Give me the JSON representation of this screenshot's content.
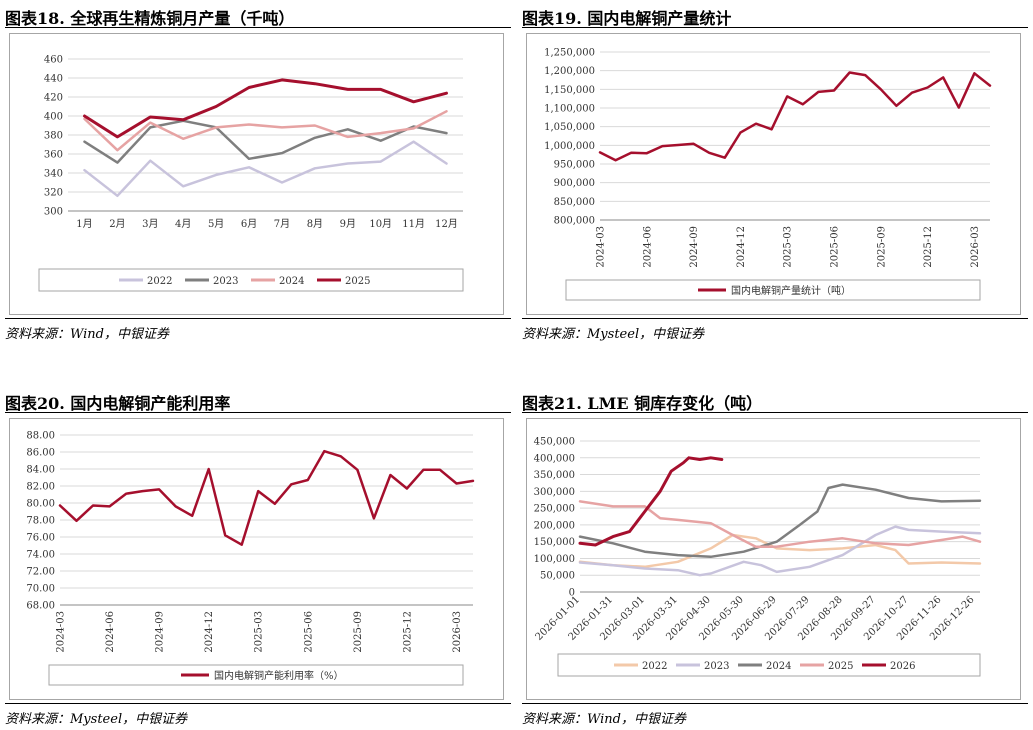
{
  "charts": [
    {
      "title": "图表18.   全球再生精炼铜月产量（千吨）",
      "source": "资料来源：Wind，中银证券",
      "chart_data": {
        "type": "line",
        "categories": [
          "1月",
          "2月",
          "3月",
          "4月",
          "5月",
          "6月",
          "7月",
          "8月",
          "9月",
          "10月",
          "11月",
          "12月"
        ],
        "ylim": [
          300,
          460
        ],
        "yticks": [
          300,
          320,
          340,
          360,
          380,
          400,
          420,
          440,
          460
        ],
        "grid": true,
        "legend": "bottom",
        "series": [
          {
            "name": "2022",
            "color": "#c8c3dc",
            "values": [
              343,
              316,
              353,
              326,
              338,
              346,
              330,
              345,
              350,
              352,
              373,
              350
            ]
          },
          {
            "name": "2023",
            "color": "#7f7f7f",
            "values": [
              373,
              351,
              388,
              395,
              388,
              355,
              361,
              377,
              386,
              374,
              389,
              382
            ]
          },
          {
            "name": "2024",
            "color": "#e6a3a3",
            "values": [
              397,
              364,
              393,
              376,
              388,
              391,
              388,
              390,
              378,
              382,
              387,
              405
            ]
          },
          {
            "name": "2025",
            "color": "#a50f2d",
            "values": [
              400,
              378,
              399,
              396,
              410,
              430,
              438,
              434,
              428,
              428,
              415,
              424
            ]
          }
        ]
      }
    },
    {
      "title": "图表19.   国内电解铜产量统计",
      "source": "资料来源：Mysteel，中银证券",
      "chart_data": {
        "type": "line",
        "x": [
          "2024-03",
          "2024-04",
          "2024-05",
          "2024-06",
          "2024-07",
          "2024-08",
          "2024-09",
          "2024-10",
          "2024-11",
          "2024-12",
          "2025-01",
          "2025-02",
          "2025-03",
          "2025-04",
          "2025-05",
          "2025-06",
          "2025-07",
          "2025-08",
          "2025-09",
          "2025-10",
          "2025-11",
          "2025-12",
          "2026-01",
          "2026-02",
          "2026-03",
          "2026-04"
        ],
        "xticks": [
          "2024-03",
          "2024-06",
          "2024-09",
          "2024-12",
          "2025-03",
          "2025-06",
          "2025-09",
          "2025-12",
          "2026-03"
        ],
        "ylim": [
          800000,
          1250000
        ],
        "yticks": [
          800000,
          850000,
          900000,
          950000,
          1000000,
          1050000,
          1100000,
          1150000,
          1200000,
          1250000
        ],
        "ytick_labels": [
          "800,000",
          "850,000",
          "900,000",
          "950,000",
          "1,000,000",
          "1,050,000",
          "1,100,000",
          "1,150,000",
          "1,200,000",
          "1,250,000"
        ],
        "grid": true,
        "legend": "bottom",
        "series": [
          {
            "name": "国内电解铜产量统计（吨）",
            "color": "#a50f2d",
            "values": [
              981000,
              960000,
              980000,
              979000,
              998000,
              1001000,
              1004000,
              980000,
              967000,
              1034000,
              1058000,
              1043000,
              1131000,
              1110000,
              1143000,
              1147000,
              1195000,
              1188000,
              1150000,
              1106000,
              1141000,
              1155000,
              1182000,
              1101000,
              1193000,
              1160000
            ]
          }
        ]
      }
    },
    {
      "title": "图表20.   国内电解铜产能利用率",
      "source": "资料来源：Mysteel，中银证券",
      "chart_data": {
        "type": "line",
        "x": [
          "2024-03",
          "2024-04",
          "2024-05",
          "2024-06",
          "2024-07",
          "2024-08",
          "2024-09",
          "2024-10",
          "2024-11",
          "2024-12",
          "2025-01",
          "2025-02",
          "2025-03",
          "2025-04",
          "2025-05",
          "2025-06",
          "2025-07",
          "2025-08",
          "2025-09",
          "2025-10",
          "2025-11",
          "2025-12",
          "2026-01",
          "2026-02",
          "2026-03",
          "2026-04"
        ],
        "xticks": [
          "2024-03",
          "2024-06",
          "2024-09",
          "2024-12",
          "2025-03",
          "2025-06",
          "2025-09",
          "2025-12",
          "2026-03"
        ],
        "ylim": [
          68,
          88
        ],
        "yticks": [
          68,
          70,
          72,
          74,
          76,
          78,
          80,
          82,
          84,
          86,
          88
        ],
        "ytick_labels": [
          "68.00",
          "70.00",
          "72.00",
          "74.00",
          "76.00",
          "78.00",
          "80.00",
          "82.00",
          "84.00",
          "86.00",
          "88.00"
        ],
        "grid": true,
        "legend": "bottom",
        "series": [
          {
            "name": "国内电解铜产能利用率（%）",
            "color": "#a50f2d",
            "values": [
              79.7,
              77.9,
              79.7,
              79.6,
              81.1,
              81.4,
              81.6,
              79.6,
              78.5,
              84.0,
              76.2,
              75.1,
              81.4,
              79.9,
              82.2,
              82.7,
              86.1,
              85.5,
              83.9,
              78.2,
              83.3,
              81.7,
              83.9,
              83.9,
              82.3,
              82.6
            ]
          }
        ]
      }
    },
    {
      "title": "图表21.   LME 铜库存变化（吨）",
      "source": "资料来源：Wind，中银证券",
      "chart_data": {
        "type": "line",
        "x_domain": [
          "2026-01-01",
          "2026-12-31"
        ],
        "xticks": [
          "2026-01-01",
          "2026-01-31",
          "2026-03-01",
          "2026-03-31",
          "2026-04-30",
          "2026-05-30",
          "2026-06-29",
          "2026-07-29",
          "2026-08-28",
          "2026-09-27",
          "2026-10-27",
          "2026-11-26",
          "2026-12-26"
        ],
        "ylim": [
          0,
          450000
        ],
        "yticks": [
          0,
          50000,
          100000,
          150000,
          200000,
          250000,
          300000,
          350000,
          400000,
          450000
        ],
        "ytick_labels": [
          "0",
          "50,000",
          "100,000",
          "150,000",
          "200,000",
          "250,000",
          "300,000",
          "350,000",
          "400,000",
          "450,000"
        ],
        "grid": true,
        "legend": "bottom",
        "series": [
          {
            "name": "2022",
            "color": "#f3c9a9",
            "points": [
              [
                "2026-01-01",
                90000
              ],
              [
                "2026-01-31",
                80000
              ],
              [
                "2026-03-01",
                75000
              ],
              [
                "2026-03-31",
                90000
              ],
              [
                "2026-04-30",
                130000
              ],
              [
                "2026-05-20",
                170000
              ],
              [
                "2026-06-10",
                160000
              ],
              [
                "2026-06-29",
                130000
              ],
              [
                "2026-07-29",
                125000
              ],
              [
                "2026-08-28",
                130000
              ],
              [
                "2026-09-27",
                140000
              ],
              [
                "2026-10-15",
                125000
              ],
              [
                "2026-10-27",
                85000
              ],
              [
                "2026-11-26",
                88000
              ],
              [
                "2026-12-31",
                85000
              ]
            ]
          },
          {
            "name": "2023",
            "color": "#c8c3dc",
            "points": [
              [
                "2026-01-01",
                88000
              ],
              [
                "2026-01-31",
                80000
              ],
              [
                "2026-03-01",
                70000
              ],
              [
                "2026-03-31",
                65000
              ],
              [
                "2026-04-20",
                50000
              ],
              [
                "2026-04-30",
                55000
              ],
              [
                "2026-05-30",
                90000
              ],
              [
                "2026-06-15",
                80000
              ],
              [
                "2026-06-29",
                60000
              ],
              [
                "2026-07-29",
                75000
              ],
              [
                "2026-08-28",
                110000
              ],
              [
                "2026-09-27",
                170000
              ],
              [
                "2026-10-15",
                195000
              ],
              [
                "2026-10-27",
                185000
              ],
              [
                "2026-11-26",
                180000
              ],
              [
                "2026-12-31",
                175000
              ]
            ]
          },
          {
            "name": "2024",
            "color": "#7f7f7f",
            "points": [
              [
                "2026-01-01",
                165000
              ],
              [
                "2026-01-31",
                145000
              ],
              [
                "2026-03-01",
                120000
              ],
              [
                "2026-03-31",
                110000
              ],
              [
                "2026-04-30",
                105000
              ],
              [
                "2026-05-30",
                120000
              ],
              [
                "2026-06-29",
                150000
              ],
              [
                "2026-07-20",
                200000
              ],
              [
                "2026-08-05",
                240000
              ],
              [
                "2026-08-15",
                310000
              ],
              [
                "2026-08-28",
                320000
              ],
              [
                "2026-09-27",
                305000
              ],
              [
                "2026-10-27",
                280000
              ],
              [
                "2026-11-26",
                270000
              ],
              [
                "2026-12-31",
                272000
              ]
            ]
          },
          {
            "name": "2025",
            "color": "#e6a3a3",
            "points": [
              [
                "2026-01-01",
                270000
              ],
              [
                "2026-01-31",
                255000
              ],
              [
                "2026-03-01",
                255000
              ],
              [
                "2026-03-15",
                220000
              ],
              [
                "2026-03-31",
                215000
              ],
              [
                "2026-04-30",
                205000
              ],
              [
                "2026-05-20",
                170000
              ],
              [
                "2026-06-10",
                135000
              ],
              [
                "2026-06-29",
                135000
              ],
              [
                "2026-07-29",
                150000
              ],
              [
                "2026-08-28",
                160000
              ],
              [
                "2026-09-27",
                145000
              ],
              [
                "2026-10-27",
                140000
              ],
              [
                "2026-11-26",
                155000
              ],
              [
                "2026-12-15",
                165000
              ],
              [
                "2026-12-31",
                150000
              ]
            ]
          },
          {
            "name": "2026",
            "color": "#a50f2d",
            "points": [
              [
                "2026-01-01",
                145000
              ],
              [
                "2026-01-15",
                140000
              ],
              [
                "2026-01-31",
                165000
              ],
              [
                "2026-02-15",
                180000
              ],
              [
                "2026-03-01",
                240000
              ],
              [
                "2026-03-15",
                300000
              ],
              [
                "2026-03-25",
                360000
              ],
              [
                "2026-04-05",
                385000
              ],
              [
                "2026-04-10",
                400000
              ],
              [
                "2026-04-20",
                395000
              ],
              [
                "2026-04-30",
                400000
              ],
              [
                "2026-05-10",
                395000
              ]
            ]
          }
        ]
      }
    }
  ]
}
